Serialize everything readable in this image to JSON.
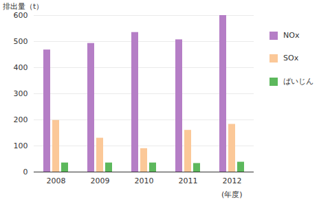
{
  "chart_data": {
    "type": "bar",
    "y_label": "排出量（t）",
    "x_label": "(年度)",
    "categories": [
      "2008",
      "2009",
      "2010",
      "2011",
      "2012"
    ],
    "series": [
      {
        "name": "NOx",
        "color": "#b57ec6",
        "values": [
          468,
          493,
          535,
          507,
          600
        ]
      },
      {
        "name": "SOx",
        "color": "#fbc898",
        "values": [
          198,
          130,
          90,
          160,
          183
        ]
      },
      {
        "name": "ばいじん",
        "color": "#5cb85c",
        "values": [
          35,
          35,
          35,
          33,
          38
        ]
      }
    ],
    "ylim": [
      0,
      600
    ],
    "yticks": [
      0,
      100,
      200,
      300,
      400,
      500,
      600
    ],
    "grid": true,
    "legend": "right"
  }
}
